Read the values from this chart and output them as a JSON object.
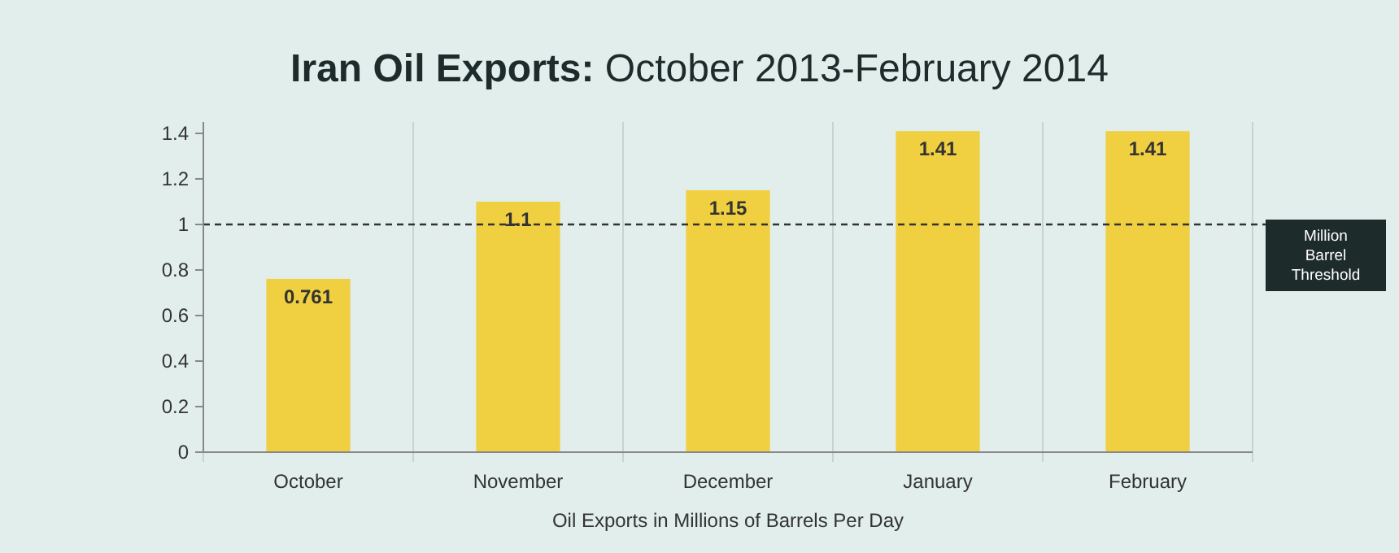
{
  "chart_data": {
    "type": "bar",
    "title": "Iran Oil Exports: October 2013-February 2014",
    "xlabel": "Oil Exports in Millions of Barrels Per Day",
    "categories": [
      "October",
      "November",
      "December",
      "January",
      "February"
    ],
    "values": [
      0.761,
      1.1,
      1.15,
      1.41,
      1.41
    ],
    "color": "#f0cf40",
    "ylim": [
      0,
      1.45
    ],
    "yticks": [
      0,
      0.2,
      0.4,
      0.6,
      0.8,
      1,
      1.2,
      1.4
    ],
    "grid": "x",
    "data_labels": true,
    "ref_lines": [
      {
        "axis": "y",
        "value": 1,
        "label": "Million Barrel Threshold",
        "color": "#333333",
        "line_style": "dashed"
      }
    ]
  }
}
